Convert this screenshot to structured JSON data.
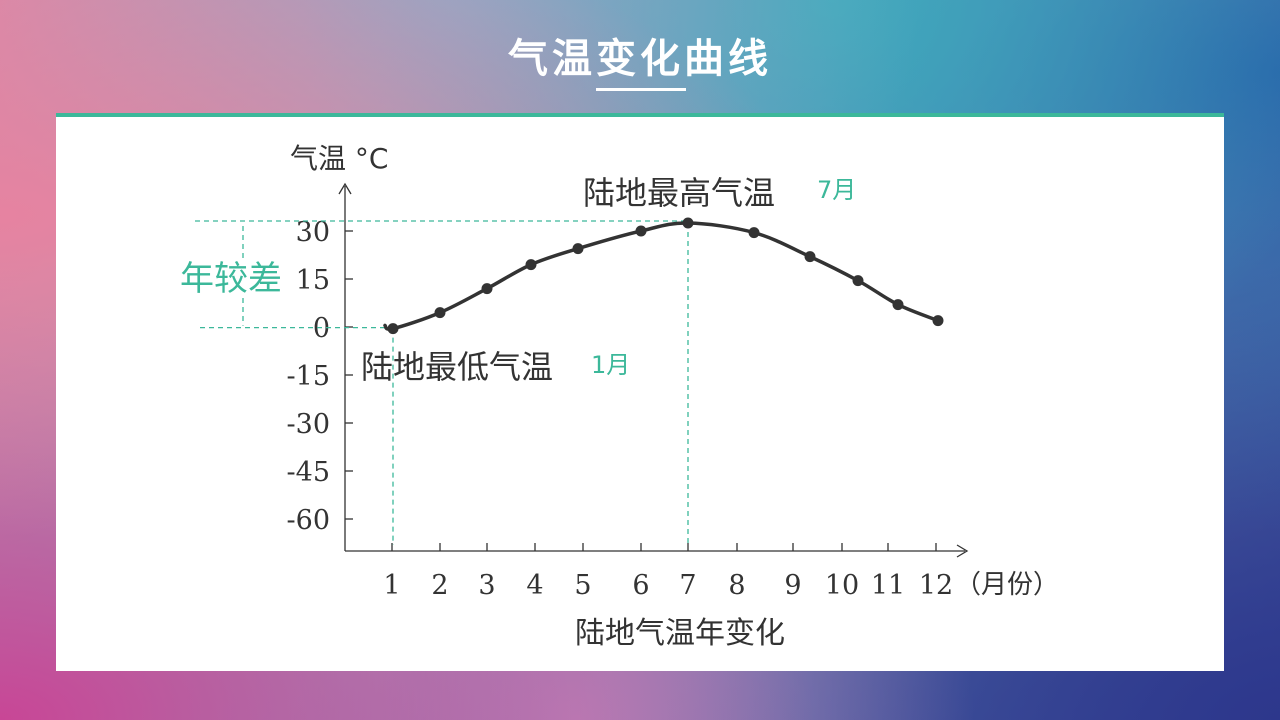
{
  "slide": {
    "title": "气温变化曲线"
  },
  "colors": {
    "accent": "#3cb89a",
    "curve": "#333333",
    "text": "#333333"
  },
  "chart_data": {
    "type": "line",
    "ylabel": "气温 °C",
    "xlabel": "陆地气温年变化",
    "x_unit_label": "（月份）",
    "x": [
      1,
      2,
      3,
      4,
      5,
      6,
      7,
      8,
      9,
      10,
      11,
      12
    ],
    "x_tick_labels": [
      "1",
      "2",
      "3",
      "4",
      "5",
      "6",
      "7",
      "8",
      "9",
      "10",
      "11",
      "12"
    ],
    "values": [
      -0.5,
      4.5,
      12,
      19.5,
      24.5,
      30,
      32.5,
      29.5,
      22,
      14.5,
      7,
      2
    ],
    "y_ticks": [
      30,
      15,
      0,
      -15,
      -30,
      -45,
      -60
    ],
    "y_tick_labels": [
      "30",
      "15",
      "0",
      "-15",
      "-30",
      "-45",
      "-60"
    ],
    "ylim": [
      -69,
      45
    ],
    "grid": false,
    "annotations": {
      "range_label": "年较差",
      "max_label": "陆地最高气温",
      "max_month": "7月",
      "min_label": "陆地最低气温",
      "min_month": "1月"
    }
  }
}
